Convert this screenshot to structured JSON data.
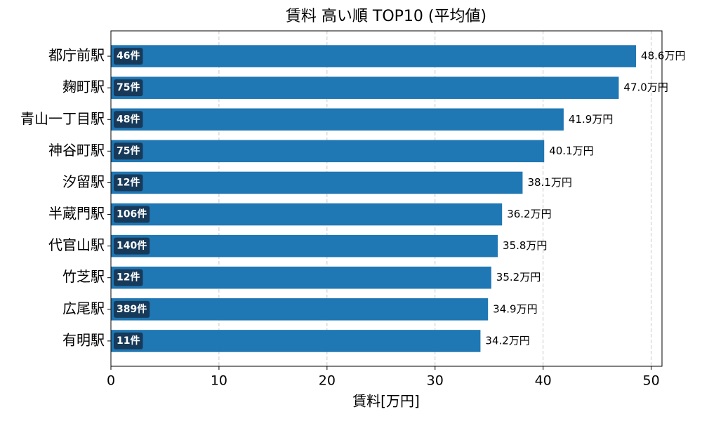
{
  "chart_data": {
    "type": "barh",
    "title": "賃料 高い順 TOP10 (平均値)",
    "xlabel": "賃料[万円]",
    "categories": [
      "都庁前駅",
      "麹町駅",
      "青山一丁目駅",
      "神谷町駅",
      "汐留駅",
      "半蔵門駅",
      "代官山駅",
      "竹芝駅",
      "広尾駅",
      "有明駅"
    ],
    "values": [
      48.6,
      47.0,
      41.9,
      40.1,
      38.1,
      36.2,
      35.8,
      35.2,
      34.9,
      34.2
    ],
    "value_labels": [
      "48.6万円",
      "47.0万円",
      "41.9万円",
      "40.1万円",
      "38.1万円",
      "36.2万円",
      "35.8万円",
      "35.2万円",
      "34.9万円",
      "34.2万円"
    ],
    "count_labels": [
      "46件",
      "75件",
      "48件",
      "75件",
      "12件",
      "106件",
      "140件",
      "12件",
      "389件",
      "11件"
    ],
    "color": "#1f77b4",
    "badge_color": "#173a5a",
    "xlim": [
      0,
      51
    ],
    "xticks": [
      0,
      10,
      20,
      30,
      40,
      50
    ],
    "grid": true
  }
}
